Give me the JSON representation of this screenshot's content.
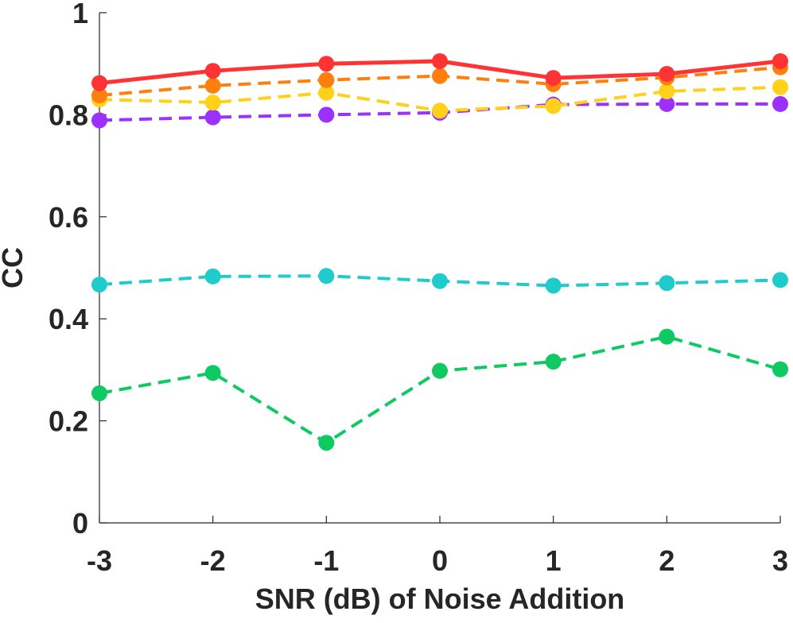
{
  "chart_data": {
    "type": "line",
    "title": "",
    "xlabel": "SNR (dB) of Noise Addition",
    "ylabel": "CC",
    "x": [
      -3,
      -2,
      -1,
      0,
      1,
      2,
      3
    ],
    "x_tick_labels": [
      "-3",
      "-2",
      "-1",
      "0",
      "1",
      "2",
      "3"
    ],
    "y_tick_values": [
      0,
      0.2,
      0.4,
      0.6,
      0.8,
      1
    ],
    "y_tick_labels": [
      "0",
      "0.2",
      "0.4",
      "0.6",
      "0.8",
      "1"
    ],
    "xlim": [
      -3,
      3
    ],
    "ylim": [
      0,
      1
    ],
    "grid": false,
    "series": [
      {
        "name": "red-solid",
        "color": "#ff3333",
        "style": "solid",
        "values": [
          0.862,
          0.886,
          0.9,
          0.905,
          0.872,
          0.88,
          0.905
        ]
      },
      {
        "name": "orange-dashed",
        "color": "#ff7f0e",
        "style": "dashed",
        "values": [
          0.838,
          0.857,
          0.868,
          0.876,
          0.86,
          0.873,
          0.893
        ]
      },
      {
        "name": "yellow-dashed",
        "color": "#ffd11a",
        "style": "dashed",
        "values": [
          0.83,
          0.824,
          0.843,
          0.808,
          0.817,
          0.846,
          0.854
        ]
      },
      {
        "name": "purple-dashed",
        "color": "#9b30ff",
        "style": "dashed",
        "values": [
          0.789,
          0.795,
          0.8,
          0.804,
          0.82,
          0.821,
          0.821
        ]
      },
      {
        "name": "cyan-dashed",
        "color": "#20cbcb",
        "style": "dashed",
        "values": [
          0.467,
          0.483,
          0.484,
          0.474,
          0.465,
          0.47,
          0.476
        ]
      },
      {
        "name": "green-dashed",
        "color": "#0fca62",
        "style": "dashed",
        "values": [
          0.254,
          0.294,
          0.157,
          0.298,
          0.316,
          0.365,
          0.301
        ]
      }
    ]
  }
}
